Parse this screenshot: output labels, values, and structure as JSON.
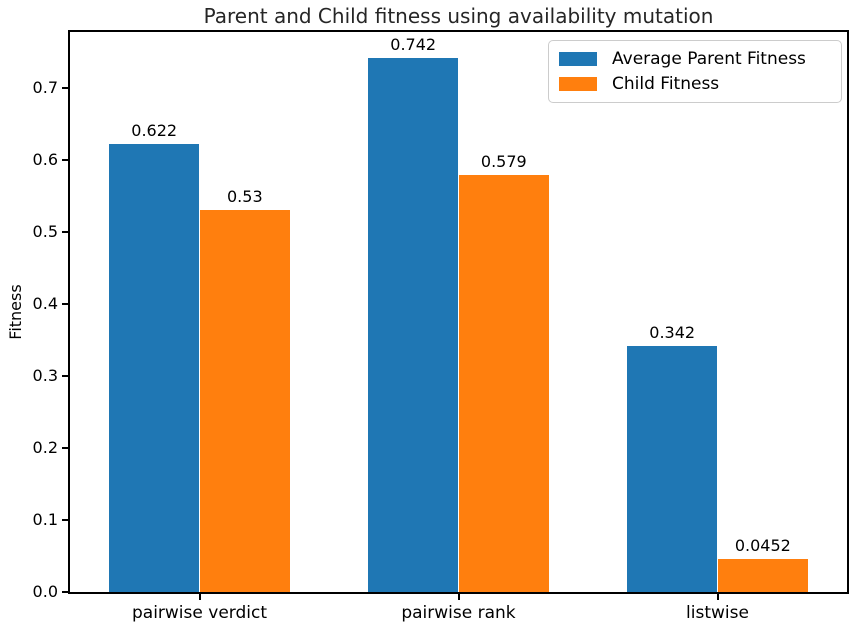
{
  "chart_data": {
    "type": "bar",
    "title": "Parent and Child fitness using availability mutation",
    "xlabel": "",
    "ylabel": "Fitness",
    "categories": [
      "pairwise verdict",
      "pairwise rank",
      "listwise"
    ],
    "series": [
      {
        "name": "Average Parent Fitness",
        "color": "#1f77b4",
        "values": [
          0.622,
          0.742,
          0.342
        ],
        "value_labels": [
          "0.622",
          "0.742",
          "0.342"
        ]
      },
      {
        "name": "Child Fitness",
        "color": "#ff7f0e",
        "values": [
          0.53,
          0.579,
          0.0452
        ],
        "value_labels": [
          "0.53",
          "0.579",
          "0.0452"
        ]
      }
    ],
    "ylim": [
      0,
      0.7778
    ],
    "xlim": [
      -0.5,
      2.5
    ],
    "yticks": [
      0.0,
      0.1,
      0.2,
      0.3,
      0.4,
      0.5,
      0.6,
      0.7
    ],
    "ytick_labels": [
      "0.0",
      "0.1",
      "0.2",
      "0.3",
      "0.4",
      "0.5",
      "0.6",
      "0.7"
    ],
    "bar_width": 0.35,
    "grid": false,
    "legend_position": "upper right",
    "background": "#ffffff",
    "spine_color": "#000000"
  }
}
